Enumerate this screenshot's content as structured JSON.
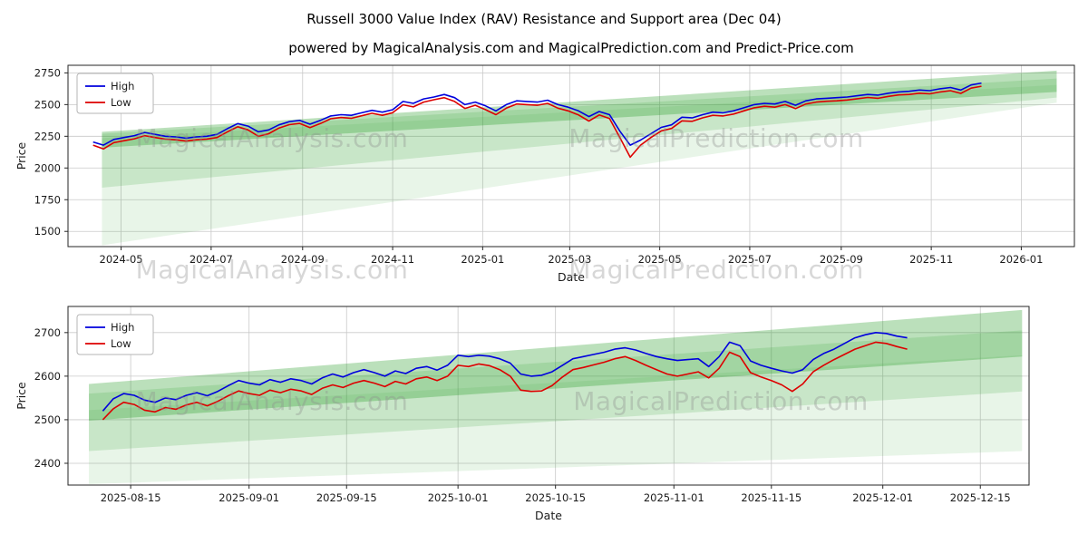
{
  "chart_data": {
    "type": "line",
    "title": "Russell 3000 Value Index (RAV) Resistance and Support area (Dec 04)",
    "subtitle": "powered by MagicalAnalysis.com and MagicalPrediction.com and Predict-Price.com",
    "watermark_texts": [
      "MagicalAnalysis.com",
      "MagicalPrediction.com"
    ],
    "legend_position": "upper left",
    "grid": true,
    "colors": {
      "high": "#0000dd",
      "low": "#dd0000",
      "band": "#2ca02c",
      "grid": "#c9c9c9",
      "spine": "#262626",
      "watermark": "#8f8f8f"
    },
    "charts": [
      {
        "name": "long",
        "xlabel": "Date",
        "ylabel": "Price",
        "xlim": [
          "2024-03-26",
          "2026-02-06"
        ],
        "ylim": [
          1380,
          2810
        ],
        "xticks": [
          "2024-05",
          "2024-07",
          "2024-09",
          "2024-11",
          "2025-01",
          "2025-03",
          "2025-05",
          "2025-07",
          "2025-09",
          "2025-11",
          "2026-01"
        ],
        "yticks": [
          1500,
          1750,
          2000,
          2250,
          2500,
          2750
        ],
        "start": "2024-04-12",
        "interval_days": 7,
        "series": [
          {
            "name": "High",
            "color_key": "high",
            "values": [
              2205,
              2180,
              2225,
              2240,
              2255,
              2280,
              2265,
              2250,
              2245,
              2235,
              2245,
              2250,
              2265,
              2310,
              2350,
              2330,
              2285,
              2300,
              2340,
              2365,
              2375,
              2345,
              2375,
              2410,
              2420,
              2415,
              2435,
              2455,
              2440,
              2460,
              2525,
              2510,
              2545,
              2560,
              2580,
              2555,
              2500,
              2520,
              2490,
              2450,
              2500,
              2530,
              2525,
              2520,
              2535,
              2500,
              2480,
              2450,
              2405,
              2445,
              2420,
              2290,
              2180,
              2220,
              2270,
              2320,
              2340,
              2400,
              2395,
              2420,
              2440,
              2435,
              2450,
              2475,
              2500,
              2510,
              2505,
              2525,
              2495,
              2530,
              2545,
              2550,
              2555,
              2560,
              2570,
              2580,
              2575,
              2590,
              2600,
              2605,
              2615,
              2610,
              2625,
              2635,
              2615,
              2655,
              2670
            ]
          },
          {
            "name": "Low",
            "color_key": "low",
            "values": [
              2180,
              2150,
              2200,
              2215,
              2230,
              2255,
              2240,
              2228,
              2222,
              2212,
              2222,
              2228,
              2240,
              2285,
              2325,
              2300,
              2250,
              2270,
              2315,
              2342,
              2352,
              2318,
              2350,
              2388,
              2398,
              2392,
              2412,
              2432,
              2415,
              2436,
              2498,
              2482,
              2520,
              2538,
              2555,
              2525,
              2470,
              2495,
              2460,
              2420,
              2472,
              2505,
              2500,
              2495,
              2510,
              2472,
              2450,
              2418,
              2370,
              2418,
              2390,
              2240,
              2085,
              2180,
              2240,
              2292,
              2312,
              2372,
              2368,
              2395,
              2415,
              2410,
              2425,
              2450,
              2475,
              2487,
              2480,
              2500,
              2468,
              2505,
              2520,
              2526,
              2530,
              2536,
              2546,
              2556,
              2550,
              2565,
              2576,
              2580,
              2590,
              2585,
              2600,
              2610,
              2588,
              2630,
              2645
            ]
          }
        ],
        "bands": [
          {
            "x0": "2024-04-18",
            "x1": "2026-01-25",
            "y_left": [
              2160,
              2285
            ],
            "y_right": [
              2600,
              2768
            ],
            "alpha": 0.32
          },
          {
            "x0": "2024-04-18",
            "x1": "2026-01-25",
            "y_left": [
              1845,
              2270
            ],
            "y_right": [
              2555,
              2705
            ],
            "alpha": 0.17
          },
          {
            "x0": "2024-04-18",
            "x1": "2026-01-25",
            "y_left": [
              1390,
              2235
            ],
            "y_right": [
              2515,
              2655
            ],
            "alpha": 0.11
          }
        ]
      },
      {
        "name": "zoom",
        "xlabel": "Date",
        "ylabel": "Price",
        "xlim": [
          "2025-08-06",
          "2025-12-22"
        ],
        "ylim": [
          2350,
          2760
        ],
        "xticks": [
          "2025-08-15",
          "2025-09-01",
          "2025-09-15",
          "2025-10-01",
          "2025-10-15",
          "2025-11-01",
          "2025-11-15",
          "2025-12-01",
          "2025-12-15"
        ],
        "yticks": [
          2400,
          2500,
          2600,
          2700
        ],
        "start": "2025-08-11",
        "interval_days": 1.5,
        "series": [
          {
            "name": "High",
            "color_key": "high",
            "values": [
              2520,
              2548,
              2560,
              2556,
              2545,
              2540,
              2550,
              2546,
              2556,
              2562,
              2555,
              2565,
              2578,
              2590,
              2584,
              2580,
              2592,
              2586,
              2594,
              2590,
              2582,
              2596,
              2605,
              2598,
              2608,
              2615,
              2608,
              2600,
              2612,
              2606,
              2618,
              2622,
              2614,
              2625,
              2648,
              2645,
              2648,
              2646,
              2640,
              2630,
              2605,
              2600,
              2602,
              2610,
              2625,
              2640,
              2645,
              2650,
              2655,
              2662,
              2665,
              2660,
              2652,
              2645,
              2640,
              2636,
              2638,
              2640,
              2622,
              2645,
              2678,
              2670,
              2635,
              2625,
              2618,
              2612,
              2607,
              2615,
              2638,
              2652,
              2662,
              2675,
              2688,
              2695,
              2700,
              2698,
              2692,
              2688
            ]
          },
          {
            "name": "Low",
            "color_key": "low",
            "values": [
              2500,
              2525,
              2540,
              2535,
              2522,
              2518,
              2528,
              2524,
              2534,
              2540,
              2532,
              2542,
              2555,
              2566,
              2560,
              2556,
              2568,
              2562,
              2570,
              2566,
              2558,
              2572,
              2580,
              2574,
              2584,
              2590,
              2584,
              2576,
              2588,
              2582,
              2594,
              2598,
              2590,
              2600,
              2625,
              2622,
              2628,
              2624,
              2615,
              2600,
              2568,
              2565,
              2566,
              2578,
              2598,
              2615,
              2620,
              2626,
              2632,
              2640,
              2645,
              2636,
              2625,
              2615,
              2605,
              2600,
              2605,
              2610,
              2596,
              2618,
              2655,
              2645,
              2608,
              2598,
              2590,
              2580,
              2565,
              2582,
              2610,
              2625,
              2638,
              2650,
              2662,
              2670,
              2678,
              2675,
              2668,
              2662
            ]
          }
        ],
        "bands": [
          {
            "x0": "2025-08-09",
            "x1": "2025-12-21",
            "y_left": [
              2498,
              2582
            ],
            "y_right": [
              2645,
              2752
            ],
            "alpha": 0.32
          },
          {
            "x0": "2025-08-09",
            "x1": "2025-12-21",
            "y_left": [
              2428,
              2560
            ],
            "y_right": [
              2565,
              2705
            ],
            "alpha": 0.17
          },
          {
            "x0": "2025-08-09",
            "x1": "2025-12-21",
            "y_left": [
              2352,
              2522
            ],
            "y_right": [
              2428,
              2648
            ],
            "alpha": 0.11
          }
        ]
      }
    ]
  }
}
